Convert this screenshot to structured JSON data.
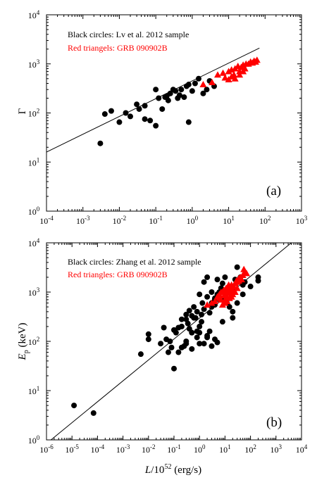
{
  "figure": {
    "xlabel_main": "L",
    "xlabel_tail": "/10",
    "xlabel_exp": "52",
    "xlabel_unit": " (erg/s)"
  },
  "chart_data": [
    {
      "type": "scatter",
      "panel_label": "(a)",
      "ylabel": "Γ",
      "x_scale": "log",
      "y_scale": "log",
      "xlim": [
        0.0001,
        1000
      ],
      "ylim": [
        1,
        10000
      ],
      "x_ticks": [
        "10^-4",
        "10^-3",
        "10^-2",
        "10^-1",
        "10^0",
        "10^1",
        "10^2",
        "10^3"
      ],
      "y_ticks": [
        "10^0",
        "10^1",
        "10^2",
        "10^3",
        "10^4"
      ],
      "grid": false,
      "annotations": [
        {
          "text": "Black circles: Lv et al. 2012 sample",
          "color": "#000000"
        },
        {
          "text": "Red triangels: GRB 090902B",
          "color": "#ff0000"
        }
      ],
      "fit_line": {
        "x": [
          0.0001,
          70
        ],
        "y": [
          16,
          2100
        ]
      },
      "series": [
        {
          "marker": "circle",
          "color": "#000000",
          "x": [
            0.003,
            0.004,
            0.006,
            0.01,
            0.015,
            0.02,
            0.03,
            0.035,
            0.05,
            0.05,
            0.07,
            0.1,
            0.1,
            0.12,
            0.15,
            0.18,
            0.2,
            0.22,
            0.25,
            0.3,
            0.35,
            0.4,
            0.45,
            0.5,
            0.6,
            0.7,
            0.8,
            0.8,
            1.0,
            1.2,
            1.5,
            2.0,
            2.5,
            3.0,
            4.0
          ],
          "y": [
            24,
            95,
            110,
            65,
            100,
            85,
            150,
            120,
            140,
            75,
            70,
            55,
            300,
            200,
            120,
            210,
            220,
            180,
            250,
            300,
            280,
            200,
            230,
            300,
            210,
            350,
            65,
            380,
            280,
            400,
            500,
            250,
            300,
            450,
            350
          ]
        },
        {
          "marker": "triangle",
          "color": "#ff0000",
          "x": [
            2.0,
            3.5,
            5,
            7,
            8,
            10,
            12,
            14,
            15,
            18,
            20,
            22,
            25,
            28,
            30,
            35,
            40,
            45,
            50,
            55,
            60,
            10,
            12,
            15,
            20,
            25
          ],
          "y": [
            380,
            420,
            600,
            650,
            520,
            700,
            760,
            600,
            800,
            900,
            700,
            850,
            950,
            800,
            1000,
            1000,
            1100,
            1050,
            1150,
            1100,
            1200,
            480,
            550,
            500,
            600,
            700
          ]
        }
      ]
    },
    {
      "type": "scatter",
      "panel_label": "(b)",
      "ylabel_main": "E",
      "ylabel_sub": "p",
      "ylabel_unit": " (keV)",
      "x_scale": "log",
      "y_scale": "log",
      "xlim": [
        1e-06,
        10000
      ],
      "ylim": [
        1,
        10000
      ],
      "x_ticks": [
        "10^-6",
        "10^-5",
        "10^-4",
        "10^-3",
        "10^-2",
        "10^-1",
        "10^0",
        "10^1",
        "10^2",
        "10^3",
        "10^4"
      ],
      "y_ticks": [
        "10^0",
        "10^1",
        "10^2",
        "10^3",
        "10^4"
      ],
      "grid": false,
      "annotations": [
        {
          "text": "Black circles: Zhang et al. 2012 sample",
          "color": "#000000"
        },
        {
          "text": "Red triangles: GRB 090902B",
          "color": "#ff0000"
        }
      ],
      "fit_line": {
        "x": [
          1.5e-06,
          4000
        ],
        "y": [
          1,
          10000
        ]
      },
      "series": [
        {
          "marker": "circle",
          "color": "#000000",
          "x": [
            1.2e-05,
            7e-05,
            0.005,
            0.01,
            0.01,
            0.03,
            0.04,
            0.05,
            0.06,
            0.08,
            0.1,
            0.1,
            0.12,
            0.15,
            0.2,
            0.2,
            0.25,
            0.3,
            0.3,
            0.35,
            0.4,
            0.4,
            0.5,
            0.5,
            0.6,
            0.7,
            0.8,
            0.8,
            1,
            1,
            1.2,
            1.3,
            1.5,
            1.5,
            2,
            2,
            2,
            2.5,
            3,
            3,
            4,
            4,
            5,
            5,
            6,
            7,
            8,
            8,
            10,
            10,
            12,
            15,
            15,
            20,
            20,
            25,
            30,
            40,
            50,
            60,
            100,
            200,
            200,
            0.2,
            0.3,
            0.5,
            1,
            1.5,
            2,
            3,
            4,
            5,
            0.5,
            0.8,
            1,
            0.15,
            0.07,
            0.3,
            0.6,
            1.2,
            2.5,
            8,
            20,
            30,
            50,
            3,
            4,
            6
          ],
          "y": [
            5,
            3.5,
            55,
            140,
            110,
            90,
            190,
            110,
            60,
            75,
            28,
            170,
            150,
            190,
            280,
            200,
            80,
            280,
            350,
            230,
            180,
            420,
            330,
            150,
            500,
            300,
            400,
            160,
            90,
            900,
            250,
            600,
            1600,
            450,
            800,
            2000,
            130,
            380,
            600,
            1000,
            550,
            700,
            1800,
            900,
            1000,
            1200,
            1500,
            700,
            800,
            2000,
            600,
            500,
            1000,
            300,
            1300,
            1800,
            3200,
            2000,
            1400,
            1600,
            1300,
            2000,
            1700,
            75,
            100,
            150,
            200,
            90,
            120,
            80,
            110,
            95,
            70,
            120,
            150,
            60,
            100,
            90,
            300,
            350,
            160,
            250,
            400,
            600,
            900,
            500,
            750,
            700
          ]
        },
        {
          "marker": "triangle",
          "color": "#ff0000",
          "x": [
            2,
            3,
            4,
            5,
            6,
            7,
            8,
            8,
            9,
            10,
            10,
            11,
            12,
            13,
            14,
            15,
            16,
            18,
            20,
            22,
            25,
            28,
            30,
            35,
            40,
            45,
            50,
            60,
            70,
            10,
            12,
            15,
            18,
            20,
            25,
            30,
            9,
            11,
            13,
            6,
            7,
            14,
            17,
            35,
            55
          ],
          "y": [
            550,
            600,
            650,
            800,
            900,
            700,
            1000,
            550,
            1100,
            900,
            700,
            1200,
            800,
            1300,
            1000,
            1200,
            950,
            1400,
            1100,
            1300,
            1500,
            1700,
            1600,
            1900,
            2000,
            1800,
            2200,
            2600,
            2400,
            600,
            650,
            750,
            800,
            900,
            1000,
            1200,
            850,
            1050,
            950,
            750,
            1000,
            1400,
            1150,
            1700,
            2900
          ]
        }
      ]
    }
  ]
}
